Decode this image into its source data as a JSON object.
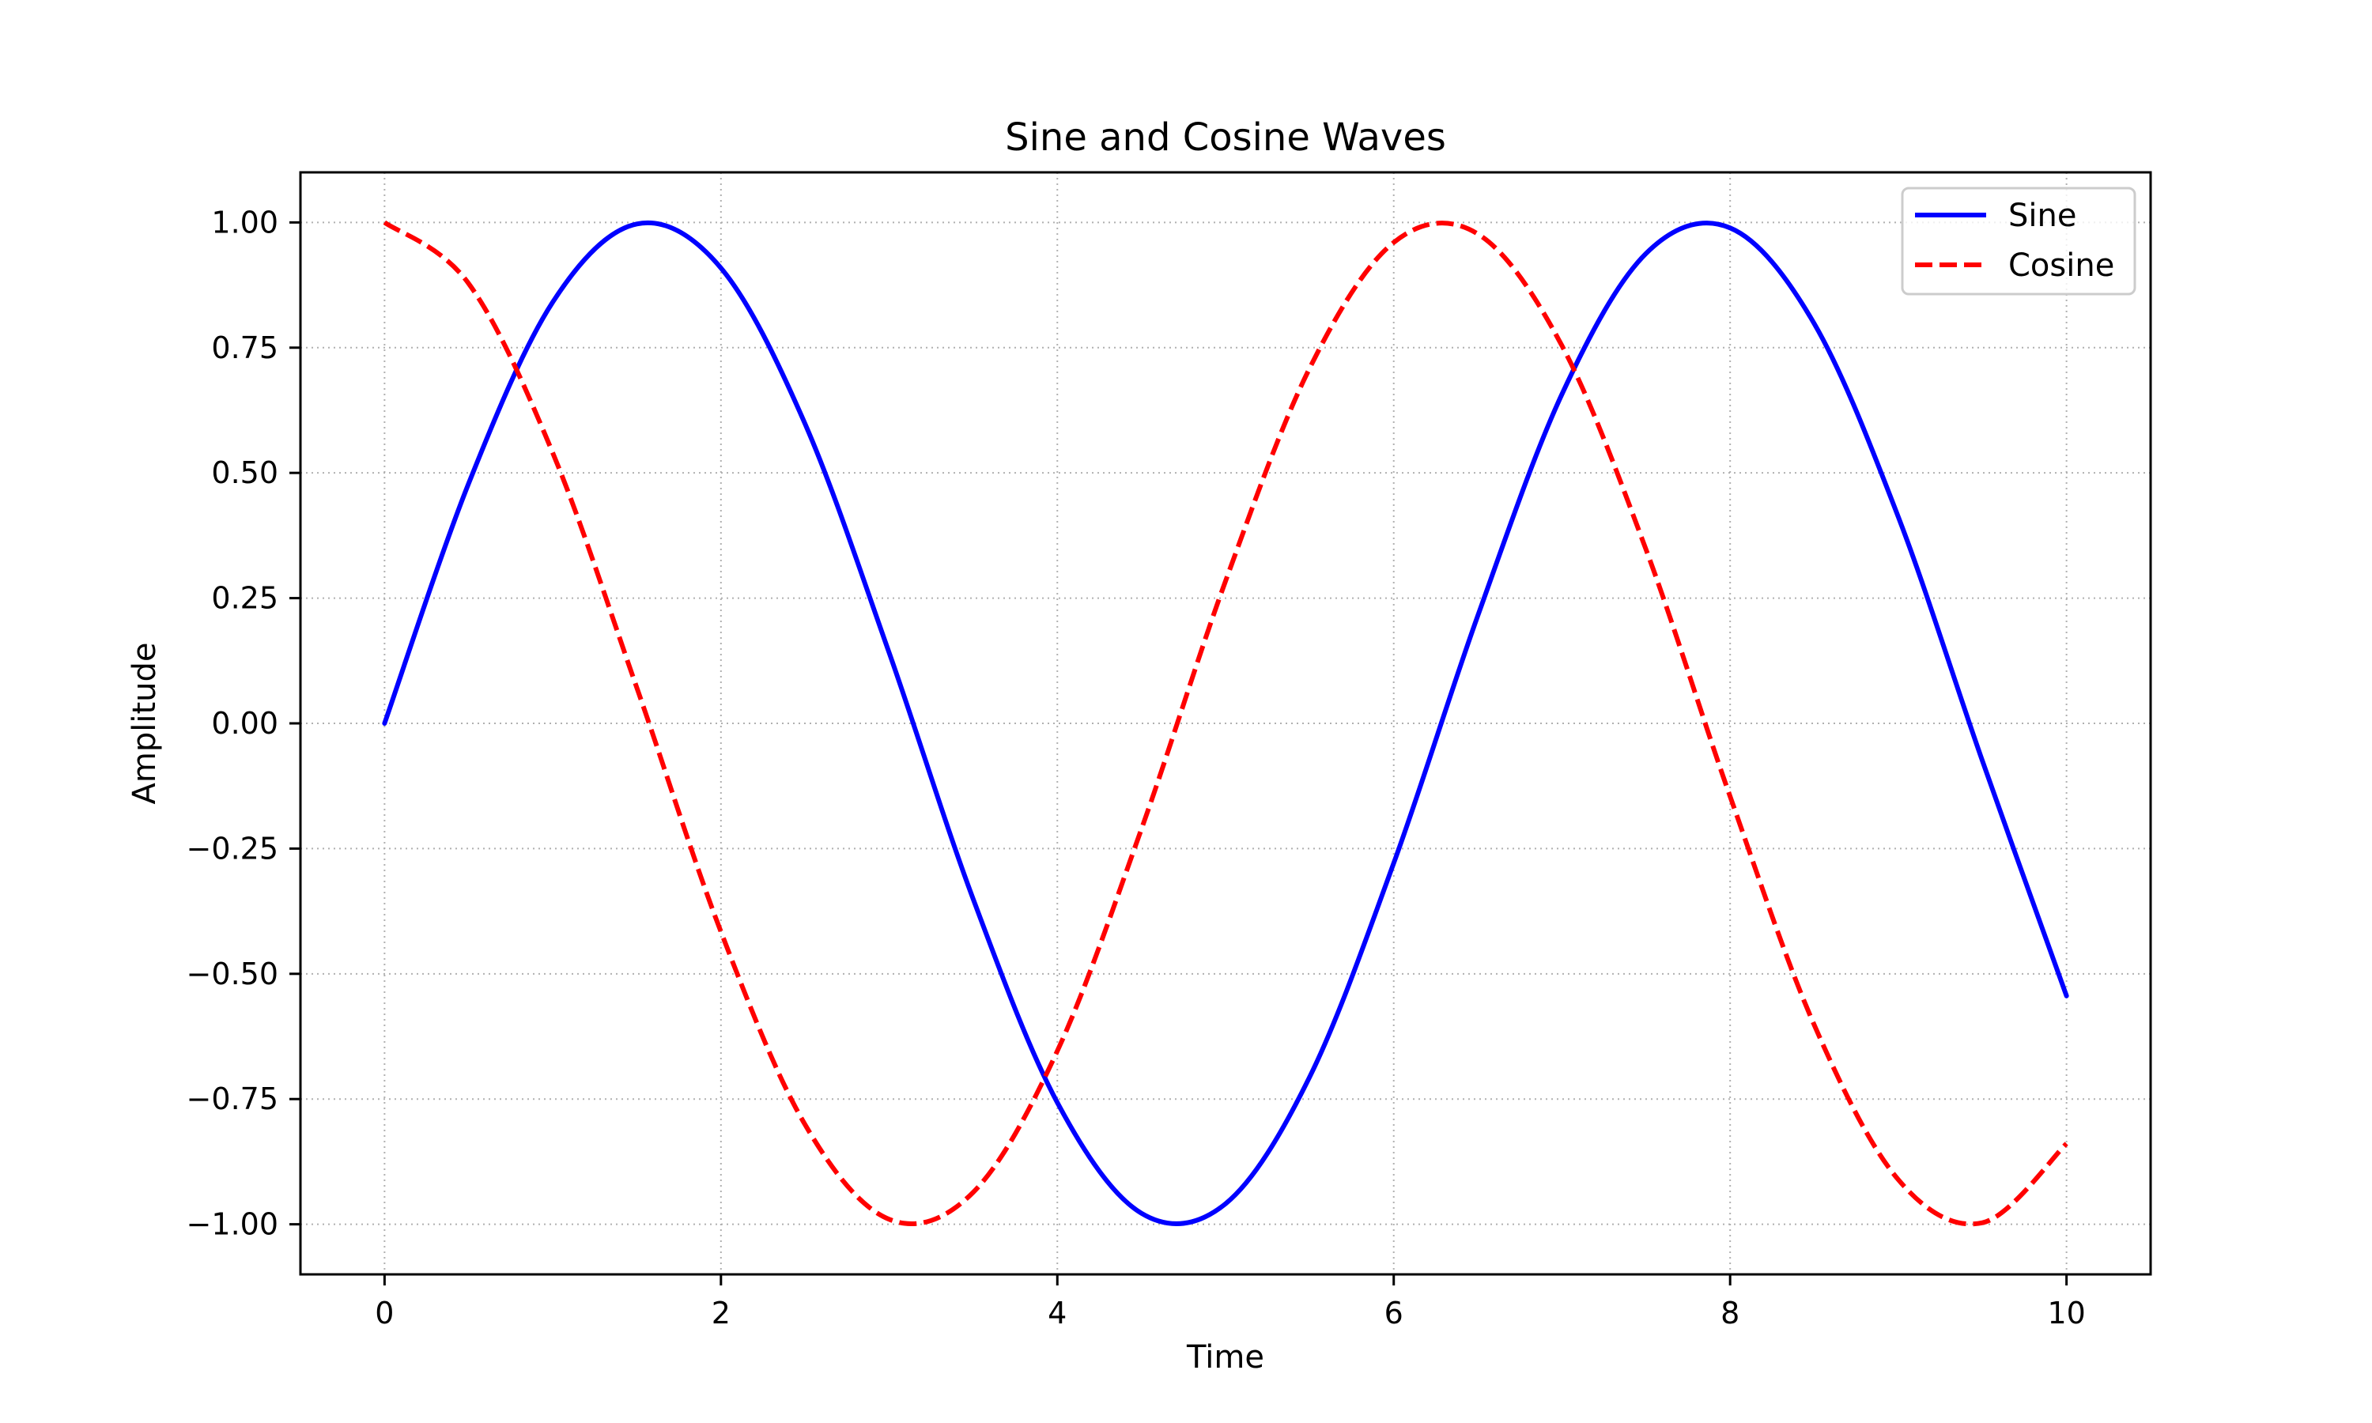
{
  "chart_data": {
    "type": "line",
    "title": "Sine and Cosine Waves",
    "xlabel": "Time",
    "ylabel": "Amplitude",
    "xlim": [
      -0.5,
      10.5
    ],
    "ylim": [
      -1.1,
      1.1
    ],
    "x_ticks": [
      0,
      2,
      4,
      6,
      8,
      10
    ],
    "x_tick_labels": [
      "0",
      "2",
      "4",
      "6",
      "8",
      "10"
    ],
    "y_ticks": [
      1.0,
      0.75,
      0.5,
      0.25,
      0.0,
      -0.25,
      -0.5,
      -0.75,
      -1.0
    ],
    "y_tick_labels": [
      "1.00",
      "0.75",
      "0.50",
      "0.25",
      "0.00",
      "−0.25",
      "−0.50",
      "−0.75",
      "−1.00"
    ],
    "grid": true,
    "legend_position": "top-right",
    "x": [
      0.0,
      0.5,
      1.0,
      1.5,
      2.0,
      2.5,
      3.0,
      3.5,
      4.0,
      4.5,
      5.0,
      5.5,
      6.0,
      6.5,
      7.0,
      7.5,
      8.0,
      8.5,
      9.0,
      9.5,
      10.0
    ],
    "series": [
      {
        "name": "Sine",
        "color": "#0000ff",
        "style": "solid",
        "values": [
          0.0,
          0.479,
          0.841,
          0.997,
          0.909,
          0.598,
          0.141,
          -0.351,
          -0.757,
          -0.978,
          -0.959,
          -0.706,
          -0.279,
          0.215,
          0.657,
          0.938,
          0.989,
          0.798,
          0.412,
          -0.075,
          -0.544
        ]
      },
      {
        "name": "Cosine",
        "color": "#ff0000",
        "style": "dashed",
        "values": [
          1.0,
          0.878,
          0.54,
          0.071,
          -0.416,
          -0.801,
          -0.99,
          -0.936,
          -0.654,
          -0.211,
          0.284,
          0.709,
          0.96,
          0.977,
          0.754,
          0.347,
          -0.146,
          -0.602,
          -0.911,
          -0.997,
          -0.839
        ]
      }
    ]
  }
}
